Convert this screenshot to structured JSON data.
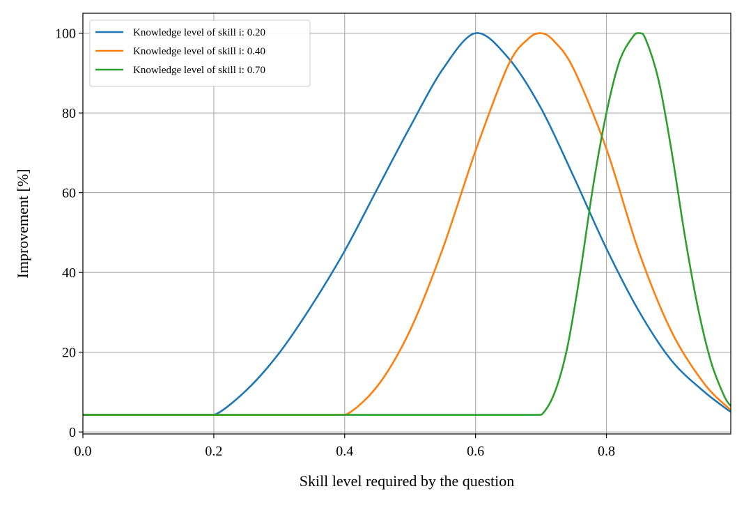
{
  "chart_data": {
    "type": "line",
    "title": "",
    "xlabel": "Skill level required by the question",
    "ylabel": "Improvement [%]",
    "xlim": [
      0.0,
      0.99
    ],
    "ylim": [
      -0.5,
      105
    ],
    "xticks": [
      0.0,
      0.2,
      0.4,
      0.6,
      0.8
    ],
    "xtick_labels": [
      "0.0",
      "0.2",
      "0.4",
      "0.6",
      "0.8"
    ],
    "yticks": [
      0,
      20,
      40,
      60,
      80,
      100
    ],
    "ytick_labels": [
      "0",
      "20",
      "40",
      "60",
      "80",
      "100"
    ],
    "grid": true,
    "legend_position": "top-left",
    "series": [
      {
        "name": "Knowledge level of skill i: 0.20",
        "color": "#1f77b4",
        "x": [
          0.0,
          0.2,
          0.25,
          0.3,
          0.35,
          0.4,
          0.45,
          0.5,
          0.55,
          0.6,
          0.65,
          0.7,
          0.75,
          0.8,
          0.85,
          0.9,
          0.95,
          0.99
        ],
        "y": [
          4.3,
          4.3,
          10.5,
          19.8,
          31.8,
          45.4,
          61.0,
          76.5,
          91.0,
          100.0,
          93.8,
          81.2,
          64.0,
          46.0,
          30.2,
          17.8,
          10.0,
          5.0
        ]
      },
      {
        "name": "Knowledge level of skill i: 0.40",
        "color": "#ff7f0e",
        "x": [
          0.0,
          0.4,
          0.45,
          0.5,
          0.55,
          0.6,
          0.65,
          0.68,
          0.7,
          0.72,
          0.75,
          0.8,
          0.85,
          0.9,
          0.95,
          0.99
        ],
        "y": [
          4.3,
          4.3,
          11.5,
          25.5,
          46.0,
          70.5,
          92.0,
          98.5,
          100.0,
          98.0,
          91.0,
          71.0,
          45.0,
          25.0,
          12.0,
          5.5
        ]
      },
      {
        "name": "Knowledge level of skill i: 0.70",
        "color": "#2ca02c",
        "x": [
          0.0,
          0.7,
          0.72,
          0.74,
          0.76,
          0.78,
          0.8,
          0.82,
          0.84,
          0.85,
          0.86,
          0.88,
          0.9,
          0.92,
          0.94,
          0.96,
          0.98,
          0.99
        ],
        "y": [
          4.3,
          4.3,
          9.5,
          21.0,
          40.0,
          62.0,
          80.0,
          93.0,
          99.0,
          100.0,
          98.5,
          88.0,
          70.0,
          49.0,
          31.0,
          17.5,
          9.0,
          6.5
        ]
      }
    ]
  }
}
